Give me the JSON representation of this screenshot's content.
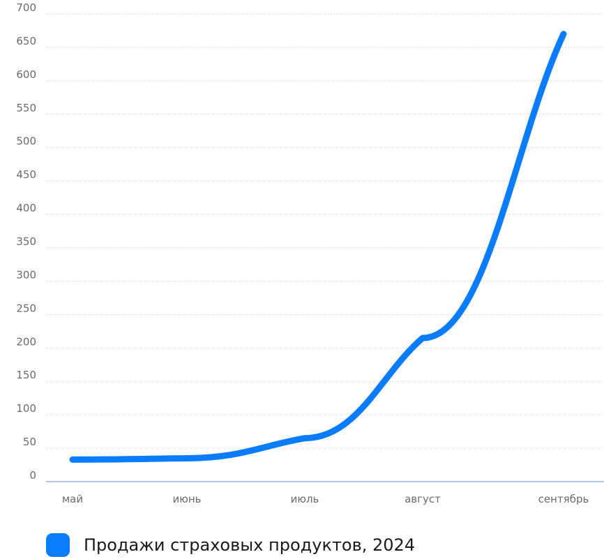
{
  "chart_data": {
    "type": "line",
    "categories": [
      "май",
      "июнь",
      "июль",
      "август",
      "сентябрь"
    ],
    "series": [
      {
        "name": "Продажи страховых продуктов, 2024",
        "values": [
          33,
          35,
          65,
          215,
          670
        ],
        "color": "#0a7cff"
      }
    ],
    "y_ticks": [
      "0",
      "50",
      "100",
      "150",
      "200",
      "250",
      "300",
      "350",
      "400",
      "450",
      "500",
      "550",
      "600",
      "650",
      "700"
    ],
    "ylim": [
      0,
      700
    ],
    "grid": true,
    "legend_position": "bottom-left",
    "curve": "smooth"
  }
}
